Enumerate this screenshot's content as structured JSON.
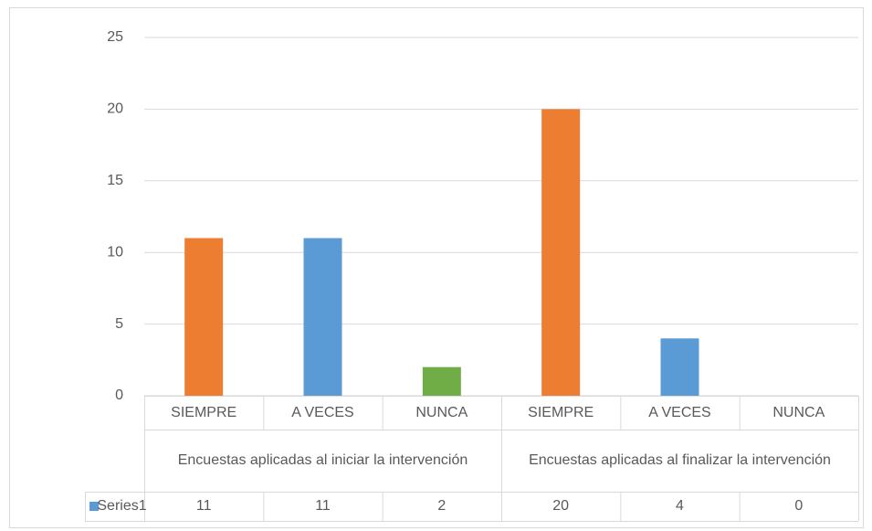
{
  "chart_data": {
    "type": "bar",
    "categories": [
      "SIEMPRE",
      "A VECES",
      "NUNCA",
      "SIEMPRE",
      "A VECES",
      "NUNCA"
    ],
    "category_groups": [
      "Encuestas aplicadas al iniciar la intervención",
      "Encuestas aplicadas al finalizar la intervención"
    ],
    "series": [
      {
        "name": "Series1",
        "color": "#5B9BD5",
        "values": [
          11,
          11,
          2,
          20,
          4,
          0
        ],
        "colors": [
          "#ED7D31",
          "#5B9BD5",
          "#70AD47",
          "#ED7D31",
          "#5B9BD5",
          "#70AD47"
        ]
      }
    ],
    "ylim": [
      0,
      25
    ],
    "yticks": [
      0,
      5,
      10,
      15,
      20,
      25
    ],
    "grid": true
  }
}
